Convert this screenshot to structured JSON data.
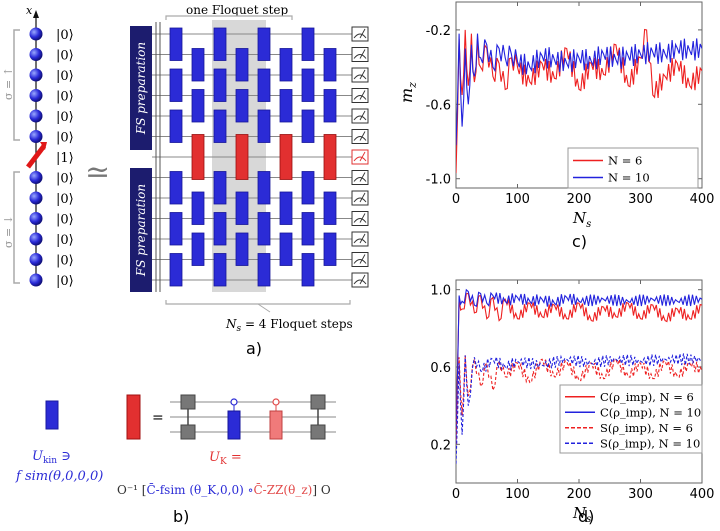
{
  "circuit": {
    "axis_label": "x",
    "kets_top": [
      "|0⟩",
      "|0⟩",
      "|0⟩",
      "|0⟩",
      "|0⟩",
      "|0⟩"
    ],
    "ket_imp": "|1⟩",
    "kets_bottom": [
      "|0⟩",
      "|0⟩",
      "|0⟩",
      "|0⟩",
      "|0⟩",
      "|0⟩"
    ],
    "sigma_up": "σ = ↑",
    "sigma_down": "σ = ↓",
    "approx": "≃",
    "fs_prep": "FS preparation",
    "floquet_step": "one Floquet step",
    "ns_steps": "N_s = 4 Floquet steps",
    "panel_a": "a)",
    "colors": {
      "blue": "#2b2bd6",
      "red": "#e23030",
      "navy": "#1c1c6e",
      "gray_band": "#d8d8d8"
    }
  },
  "gates": {
    "ukin_label": "U_kin ∋",
    "ukin_expr": "f sim(θ,0,0,0)",
    "uk_label": "U_K =",
    "uk_expr_prefix": "O⁻¹ [",
    "uk_expr_blue": "C̄-fsim (θ_K,0,0) ∘",
    "uk_expr_red": "C̄-ZZ(θ_z)",
    "uk_expr_suffix": "] O",
    "equals": "=",
    "panel_b": "b)"
  },
  "chart_c": {
    "chart_data": {
      "type": "line",
      "ylabel": "m_z",
      "xlabel": "N_s",
      "xlim": [
        0,
        400
      ],
      "ylim": [
        -1.05,
        -0.05
      ],
      "xticks": [
        0,
        100,
        200,
        300,
        400
      ],
      "yticks": [
        -1.0,
        -0.6,
        -0.2
      ],
      "legend_position": "bottom-right",
      "series": [
        {
          "name": "N = 6",
          "color": "#ee2020",
          "x": [
            0,
            5,
            10,
            15,
            20,
            25,
            30,
            35,
            40,
            50,
            60,
            70,
            80,
            90,
            100,
            120,
            140,
            160,
            180,
            200,
            220,
            240,
            260,
            280,
            300,
            310,
            320,
            340,
            360,
            380,
            400
          ],
          "y": [
            -0.97,
            -0.25,
            -0.55,
            -0.2,
            -0.5,
            -0.22,
            -0.48,
            -0.25,
            -0.4,
            -0.3,
            -0.45,
            -0.38,
            -0.52,
            -0.35,
            -0.4,
            -0.48,
            -0.38,
            -0.46,
            -0.3,
            -0.52,
            -0.38,
            -0.44,
            -0.28,
            -0.5,
            -0.35,
            -0.2,
            -0.55,
            -0.45,
            -0.38,
            -0.5,
            -0.42
          ]
        },
        {
          "name": "N = 10",
          "color": "#2222dd",
          "x": [
            0,
            5,
            10,
            15,
            20,
            25,
            30,
            35,
            40,
            50,
            60,
            70,
            80,
            90,
            100,
            120,
            140,
            160,
            180,
            200,
            220,
            240,
            260,
            280,
            300,
            320,
            340,
            360,
            380,
            400
          ],
          "y": [
            -0.82,
            -0.22,
            -0.72,
            -0.3,
            -0.6,
            -0.28,
            -0.45,
            -0.22,
            -0.35,
            -0.28,
            -0.4,
            -0.3,
            -0.35,
            -0.33,
            -0.37,
            -0.4,
            -0.34,
            -0.36,
            -0.38,
            -0.35,
            -0.37,
            -0.33,
            -0.36,
            -0.34,
            -0.33,
            -0.32,
            -0.33,
            -0.3,
            -0.31,
            -0.3
          ]
        }
      ]
    },
    "panel": "c)"
  },
  "chart_d": {
    "chart_data": {
      "type": "line",
      "xlabel": "N_s",
      "xlim": [
        0,
        400
      ],
      "ylim": [
        0,
        1.05
      ],
      "xticks": [
        0,
        100,
        200,
        300,
        400
      ],
      "yticks": [
        0.2,
        0.6,
        1.0
      ],
      "legend_position": "bottom-right",
      "series": [
        {
          "name": "C(ρ_imp), N = 6",
          "color": "#ee2020",
          "dash": false,
          "x": [
            0,
            5,
            10,
            20,
            30,
            40,
            50,
            60,
            70,
            80,
            100,
            120,
            140,
            160,
            180,
            200,
            220,
            240,
            260,
            280,
            300,
            320,
            340,
            360,
            380,
            400
          ],
          "y": [
            0.3,
            0.95,
            0.9,
            0.98,
            0.88,
            0.97,
            0.85,
            0.96,
            0.84,
            0.95,
            0.85,
            0.93,
            0.86,
            0.92,
            0.85,
            0.93,
            0.84,
            0.91,
            0.86,
            0.93,
            0.85,
            0.92,
            0.84,
            0.9,
            0.85,
            0.92
          ]
        },
        {
          "name": "C(ρ_imp), N = 10",
          "color": "#2222dd",
          "dash": false,
          "x": [
            0,
            5,
            10,
            20,
            30,
            40,
            50,
            60,
            80,
            100,
            120,
            140,
            160,
            180,
            200,
            240,
            280,
            320,
            360,
            400
          ],
          "y": [
            0.2,
            0.97,
            0.94,
            0.99,
            0.92,
            0.98,
            0.93,
            0.97,
            0.94,
            0.96,
            0.94,
            0.95,
            0.93,
            0.96,
            0.94,
            0.95,
            0.94,
            0.95,
            0.94,
            0.95
          ]
        },
        {
          "name": "S(ρ_imp), N = 6",
          "color": "#ee2020",
          "dash": true,
          "x": [
            0,
            5,
            10,
            15,
            20,
            30,
            40,
            50,
            60,
            70,
            80,
            100,
            120,
            140,
            160,
            180,
            200,
            220,
            240,
            260,
            280,
            300,
            320,
            340,
            360,
            380,
            400
          ],
          "y": [
            0.2,
            0.65,
            0.35,
            0.66,
            0.45,
            0.64,
            0.5,
            0.62,
            0.48,
            0.63,
            0.55,
            0.62,
            0.52,
            0.64,
            0.55,
            0.63,
            0.53,
            0.62,
            0.54,
            0.64,
            0.55,
            0.62,
            0.54,
            0.63,
            0.55,
            0.62,
            0.58
          ]
        },
        {
          "name": "S(ρ_imp), N = 10",
          "color": "#2222dd",
          "dash": true,
          "x": [
            0,
            5,
            10,
            15,
            20,
            30,
            40,
            60,
            80,
            100,
            140,
            180,
            220,
            260,
            300,
            340,
            400
          ],
          "y": [
            0.1,
            0.62,
            0.25,
            0.66,
            0.4,
            0.65,
            0.58,
            0.64,
            0.6,
            0.63,
            0.61,
            0.64,
            0.62,
            0.64,
            0.63,
            0.64,
            0.64
          ]
        }
      ]
    },
    "panel": "d)"
  }
}
